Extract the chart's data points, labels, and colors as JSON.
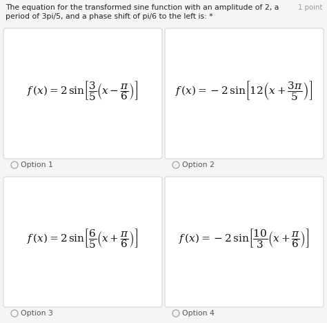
{
  "title_line1": "The equation for the transformed sine function with an amplitude of 2, a",
  "title_line2": "period of 3pi/5, and a phase shift of pi/6 to the left is: *",
  "points_label": "1 point",
  "bg_color": "#f5f5f5",
  "box_bg": "#ffffff",
  "box_border": "#d0d0d0",
  "title_fontsize": 7.8,
  "formula_fontsize": 11.0,
  "option_fontsize": 7.8,
  "formulas": [
    "$\\mathit{f}\\,(x) = 2\\,\\sin\\!\\left[\\dfrac{3}{5}\\left(x - \\dfrac{\\pi}{6}\\right)\\right]$",
    "$\\mathit{f}\\,(x) = -2\\,\\sin\\!\\left[12\\left(x + \\dfrac{3\\pi}{5}\\right)\\right]$",
    "$\\mathit{f}\\,(x) = 2\\,\\sin\\!\\left[\\dfrac{6}{5}\\left(x + \\dfrac{\\pi}{6}\\right)\\right]$",
    "$\\mathit{f}\\,(x) = -2\\,\\sin\\!\\left[\\dfrac{10}{3}\\left(x + \\dfrac{\\pi}{6}\\right)\\right]$"
  ],
  "option_labels": [
    "Option 1",
    "Option 2",
    "Option 3",
    "Option 4"
  ],
  "fig_width": 4.74,
  "fig_height": 4.68,
  "dpi": 100
}
